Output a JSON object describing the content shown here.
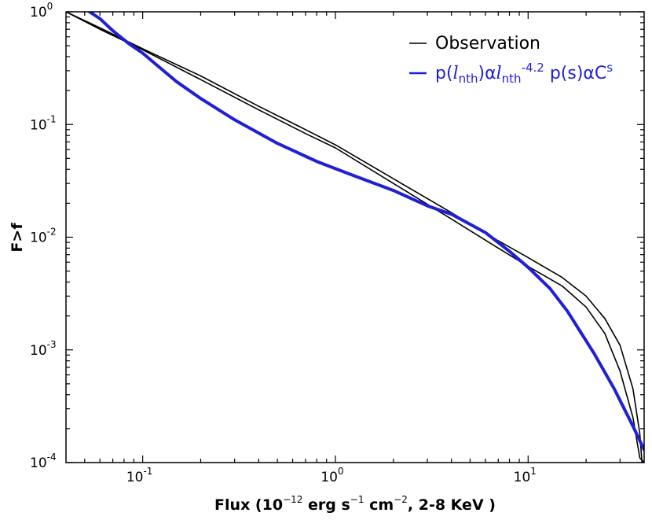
{
  "chart_data": {
    "type": "line",
    "xscale": "log",
    "yscale": "log",
    "xlim": [
      0.04,
      40
    ],
    "ylim": [
      0.0001,
      1
    ],
    "xlabel": {
      "prefix": "Flux (10",
      "exp": "−12",
      "mid1": " erg s",
      "exp2": "−1",
      "mid2": " cm",
      "exp3": "−2",
      "suffix": ", 2-8 KeV )"
    },
    "ylabel": "F>f",
    "x_ticks": [
      {
        "value": 0.1,
        "base": "10",
        "exp": "-1"
      },
      {
        "value": 1,
        "base": "10",
        "exp": "0"
      },
      {
        "value": 10,
        "base": "10",
        "exp": "1"
      }
    ],
    "y_ticks": [
      {
        "value": 1,
        "base": "10",
        "exp": "0"
      },
      {
        "value": 0.1,
        "base": "10",
        "exp": "-1"
      },
      {
        "value": 0.01,
        "base": "10",
        "exp": "-2"
      },
      {
        "value": 0.001,
        "base": "10",
        "exp": "-3"
      },
      {
        "value": 0.0001,
        "base": "10",
        "exp": "-4"
      }
    ],
    "legend_position": "top-right",
    "legend": [
      {
        "series": "Observation",
        "parts": [
          {
            "t": "Observation",
            "s": "base"
          }
        ]
      },
      {
        "series": "Model",
        "parts": [
          {
            "t": "p(",
            "s": "base"
          },
          {
            "t": "l",
            "s": "italic"
          },
          {
            "t": "nth",
            "s": "sub"
          },
          {
            "t": ")α",
            "s": "base"
          },
          {
            "t": "l",
            "s": "italic"
          },
          {
            "t": "nth",
            "s": "sub"
          },
          {
            "t": "-4.2",
            "s": "sup"
          },
          {
            "t": "  p(s)αC",
            "s": "base"
          },
          {
            "t": "s",
            "s": "sup"
          }
        ]
      }
    ],
    "series": [
      {
        "name": "Observation",
        "color": "#000000",
        "x": [
          0.04,
          0.06,
          0.1,
          0.2,
          0.4,
          0.7,
          1.0,
          2.0,
          4.0,
          7.0,
          10,
          15,
          20,
          25,
          30,
          35,
          38,
          40
        ],
        "y": [
          1.0,
          0.7,
          0.46,
          0.25,
          0.135,
          0.083,
          0.062,
          0.03,
          0.0145,
          0.008,
          0.0055,
          0.0037,
          0.0024,
          0.0014,
          0.00065,
          0.00025,
          0.00011,
          0.0001
        ]
      },
      {
        "name": "Observation (upper)",
        "color": "#000000",
        "x": [
          0.04,
          0.06,
          0.1,
          0.2,
          0.4,
          0.7,
          1.0,
          2.0,
          4.0,
          7.0,
          10,
          15,
          20,
          25,
          30,
          35,
          38,
          39
        ],
        "y": [
          1.0,
          0.72,
          0.47,
          0.27,
          0.145,
          0.09,
          0.066,
          0.033,
          0.0165,
          0.0093,
          0.0066,
          0.0044,
          0.003,
          0.0019,
          0.0011,
          0.00045,
          0.00018,
          0.0001
        ]
      },
      {
        "name": "Model",
        "color": "#1f1fd6",
        "x": [
          0.053,
          0.06,
          0.07,
          0.085,
          0.1,
          0.12,
          0.15,
          0.2,
          0.3,
          0.5,
          0.8,
          1.2,
          2.0,
          3.0,
          4.0,
          6.0,
          8.0,
          10,
          13,
          16,
          18,
          22,
          28,
          35,
          40
        ],
        "y": [
          1.0,
          0.87,
          0.68,
          0.52,
          0.43,
          0.33,
          0.24,
          0.17,
          0.11,
          0.068,
          0.047,
          0.036,
          0.026,
          0.019,
          0.016,
          0.011,
          0.0075,
          0.0054,
          0.0035,
          0.0022,
          0.0016,
          0.00093,
          0.00045,
          0.00021,
          0.00013
        ]
      }
    ]
  }
}
